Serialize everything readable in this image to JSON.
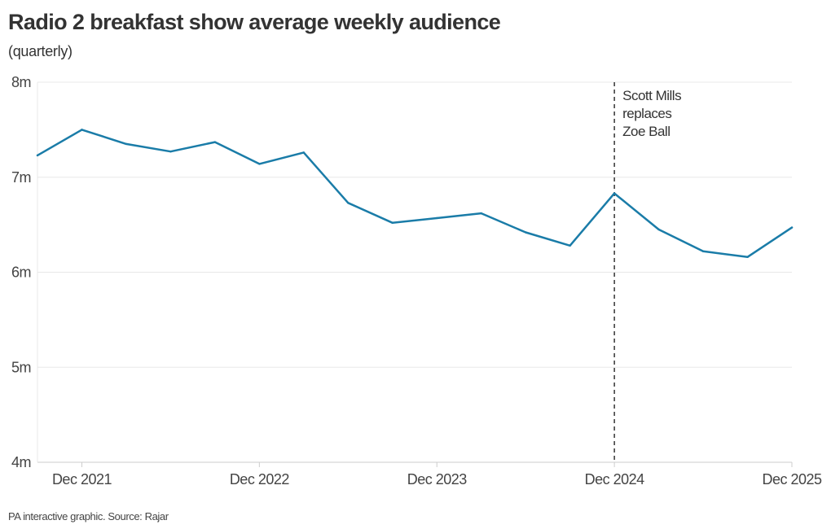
{
  "header": {
    "title": "Radio 2 breakfast show average weekly audience",
    "subtitle": "(quarterly)"
  },
  "footer": {
    "source": "PA interactive graphic. Source: Rajar"
  },
  "colors": {
    "line": "#1a7ca8",
    "grid": "#e8e8e8",
    "axis": "#cccccc",
    "annotation_line": "#333333"
  },
  "chart_data": {
    "type": "line",
    "title": "Radio 2 breakfast show average weekly audience",
    "subtitle": "(quarterly)",
    "xlabel": "",
    "ylabel": "",
    "unit": "millions",
    "ylim": [
      4,
      8
    ],
    "yticks": [
      {
        "value": 8,
        "label": "8m"
      },
      {
        "value": 7,
        "label": "7m"
      },
      {
        "value": 6,
        "label": "6m"
      },
      {
        "value": 5,
        "label": "5m"
      },
      {
        "value": 4,
        "label": "4m"
      }
    ],
    "xlim": [
      "Sep 2021",
      "Dec 2025"
    ],
    "xticks": [
      {
        "index": 1,
        "label": "Dec 2021"
      },
      {
        "index": 5,
        "label": "Dec 2022"
      },
      {
        "index": 9,
        "label": "Dec 2023"
      },
      {
        "index": 13,
        "label": "Dec 2024"
      },
      {
        "index": 17,
        "label": "Dec 2025"
      }
    ],
    "grid": true,
    "series": [
      {
        "name": "Average weekly audience",
        "x": [
          "Sep 2021",
          "Dec 2021",
          "Mar 2022",
          "Jun 2022",
          "Sep 2022",
          "Dec 2022",
          "Mar 2023",
          "Jun 2023",
          "Sep 2023",
          "Dec 2023",
          "Mar 2024",
          "Jun 2024",
          "Sep 2024",
          "Dec 2024",
          "Mar 2025",
          "Jun 2025",
          "Sep 2025",
          "Dec 2025"
        ],
        "values": [
          7.23,
          7.5,
          7.35,
          7.27,
          7.37,
          7.14,
          7.26,
          6.73,
          6.52,
          6.57,
          6.62,
          6.42,
          6.28,
          6.83,
          6.45,
          6.22,
          6.16,
          6.47
        ]
      }
    ],
    "annotations": [
      {
        "index": 13,
        "lines": [
          "Scott Mills",
          "replaces",
          "Zoe Ball"
        ],
        "style": "dashed-vertical"
      }
    ]
  }
}
